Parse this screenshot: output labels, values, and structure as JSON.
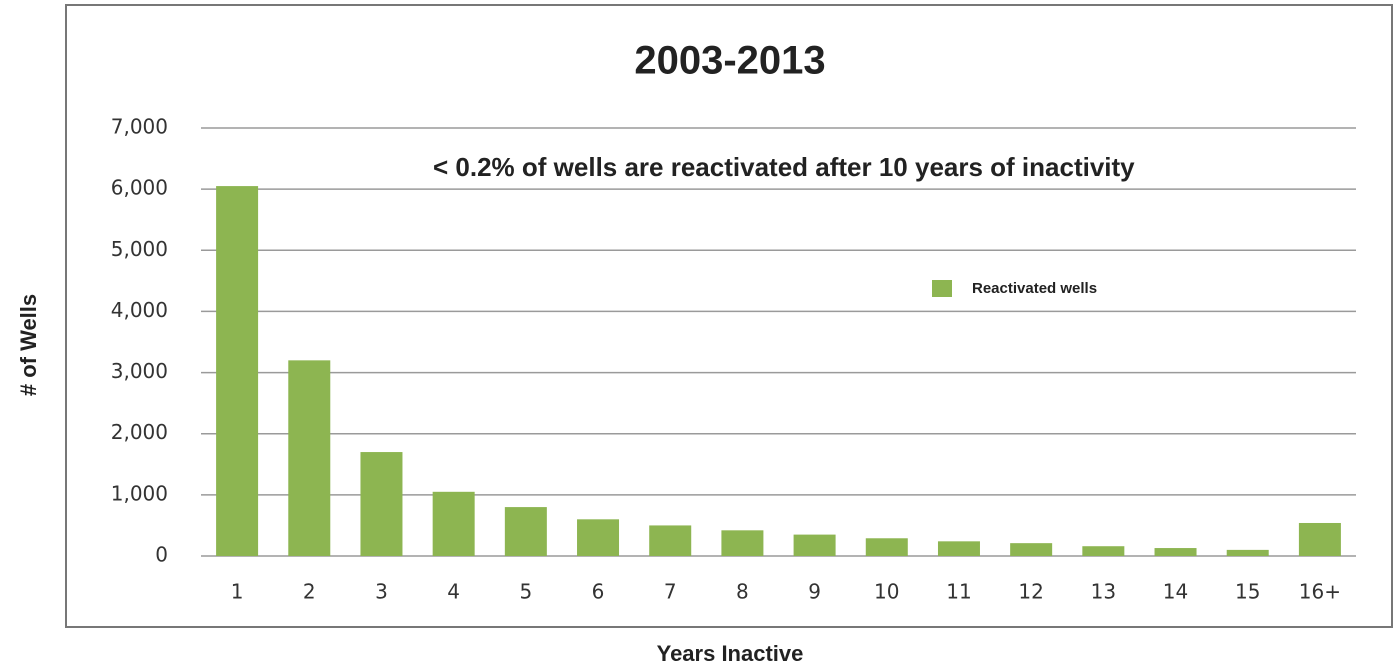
{
  "chart_data": {
    "type": "bar",
    "title": "2003-2013",
    "annotation": "< 0.2% of wells are reactivated after 10 years of inactivity",
    "x_label": "Years Inactive",
    "y_label": "# of Wells",
    "categories": [
      "1",
      "2",
      "3",
      "4",
      "5",
      "6",
      "7",
      "8",
      "9",
      "10",
      "11",
      "12",
      "13",
      "14",
      "15",
      "16+"
    ],
    "series": [
      {
        "name": "Reactivated wells",
        "color": "#8db551",
        "values": [
          6050,
          3200,
          1700,
          1050,
          800,
          600,
          500,
          420,
          350,
          290,
          240,
          210,
          160,
          130,
          100,
          540
        ]
      }
    ],
    "ylim": [
      0,
      7000
    ],
    "yticks": [
      0,
      {
        "value": 1000,
        "label": "1,000"
      },
      {
        "value": 2000,
        "label": "2,000"
      },
      {
        "value": 3000,
        "label": "3,000"
      },
      {
        "value": 4000,
        "label": "4,000"
      },
      {
        "value": 5000,
        "label": "5,000"
      },
      {
        "value": 6000,
        "label": "6,000"
      },
      {
        "value": 7000,
        "label": "7,000"
      }
    ],
    "grid": true
  }
}
